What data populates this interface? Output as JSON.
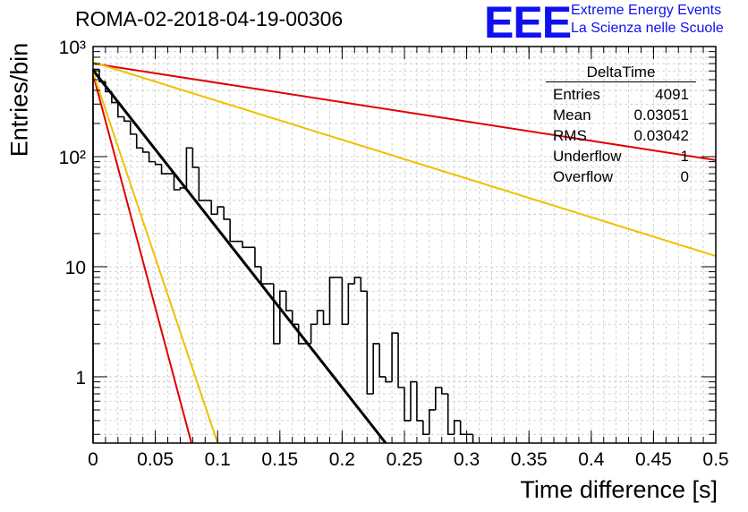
{
  "title": "ROMA-02-2018-04-19-00306",
  "logo": {
    "letters": "EEE",
    "line1": "Extreme Energy Events",
    "line2": "La Scienza nelle Scuole"
  },
  "stats": {
    "name": "DeltaTime",
    "rows": [
      {
        "label": "Entries",
        "value": "4091"
      },
      {
        "label": "Mean",
        "value": "0.03051"
      },
      {
        "label": "RMS",
        "value": "0.03042"
      },
      {
        "label": "Underflow",
        "value": "1"
      },
      {
        "label": "Overflow",
        "value": "0"
      }
    ]
  },
  "chart_data": {
    "type": "line",
    "title": "ROMA-02-2018-04-19-00306",
    "xlabel": "Time difference [s]",
    "ylabel": "Entries/bin",
    "xlim": [
      0,
      0.5
    ],
    "ylim": [
      0.25,
      1000
    ],
    "yscale": "log",
    "grid": true,
    "xticks": [
      "0",
      "0.05",
      "0.1",
      "0.15",
      "0.2",
      "0.25",
      "0.3",
      "0.35",
      "0.4",
      "0.45",
      "0.5"
    ],
    "yticks": [
      {
        "value": 1,
        "label": "1"
      },
      {
        "value": 10,
        "label": "10"
      },
      {
        "value": 100,
        "label": "10²"
      },
      {
        "value": 1000,
        "label": "10³"
      }
    ],
    "histogram": {
      "name": "DeltaTime",
      "bin_width": 0.005,
      "x_start": 0,
      "counts": [
        620,
        480,
        390,
        310,
        230,
        210,
        160,
        120,
        110,
        90,
        85,
        70,
        70,
        50,
        52,
        120,
        80,
        40,
        40,
        30,
        35,
        27,
        17,
        17,
        15,
        15,
        10,
        7,
        7,
        2,
        6,
        4,
        3,
        2,
        2,
        3,
        4,
        3,
        8,
        8,
        3,
        7,
        8,
        6,
        0.7,
        2,
        1,
        0.9,
        2.5,
        0.8,
        0.4,
        0.9,
        0.4,
        0.3,
        0.5,
        0.8,
        0.7,
        0.3,
        0.4,
        0.3,
        0.3
      ]
    },
    "series": [
      {
        "name": "fit",
        "color": "#000000",
        "x": [
          0,
          0.235
        ],
        "y": [
          610,
          0.25
        ]
      },
      {
        "name": "red-steep",
        "color": "#e00000",
        "x": [
          0,
          0.079
        ],
        "y": [
          560,
          0.25
        ]
      },
      {
        "name": "yellow-steep",
        "color": "#f0c000",
        "x": [
          0,
          0.1
        ],
        "y": [
          580,
          0.25
        ]
      },
      {
        "name": "red-shallow",
        "color": "#e00000",
        "x": [
          0,
          0.5
        ],
        "y": [
          700,
          93
        ]
      },
      {
        "name": "yellow-shallow",
        "color": "#f0c000",
        "x": [
          0,
          0.5
        ],
        "y": [
          720,
          12.5
        ]
      }
    ]
  }
}
